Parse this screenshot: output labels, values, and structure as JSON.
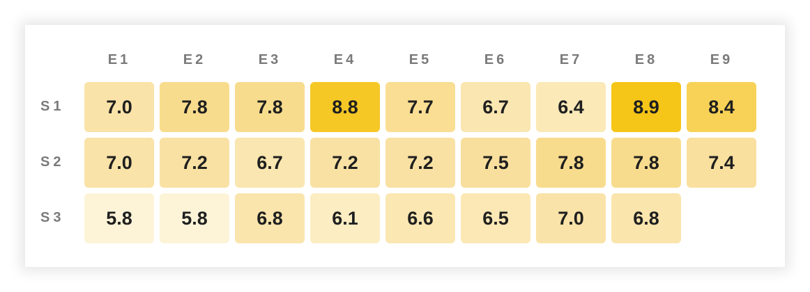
{
  "chart_data": {
    "type": "heatmap",
    "columns": [
      "E1",
      "E2",
      "E3",
      "E4",
      "E5",
      "E6",
      "E7",
      "E8",
      "E9"
    ],
    "rows": [
      "S1",
      "S2",
      "S3"
    ],
    "values": [
      [
        "7.0",
        "7.8",
        "7.8",
        "8.8",
        "7.7",
        "6.7",
        "6.4",
        "8.9",
        "8.4"
      ],
      [
        "7.0",
        "7.2",
        "6.7",
        "7.2",
        "7.2",
        "7.5",
        "7.8",
        "7.8",
        "7.4"
      ],
      [
        "5.8",
        "5.8",
        "6.8",
        "6.1",
        "6.6",
        "6.5",
        "7.0",
        "6.8",
        null
      ]
    ],
    "color_scale": {
      "low": "#fdf4d8",
      "mid": "#f9e0a0",
      "high": "#f5c518"
    }
  }
}
